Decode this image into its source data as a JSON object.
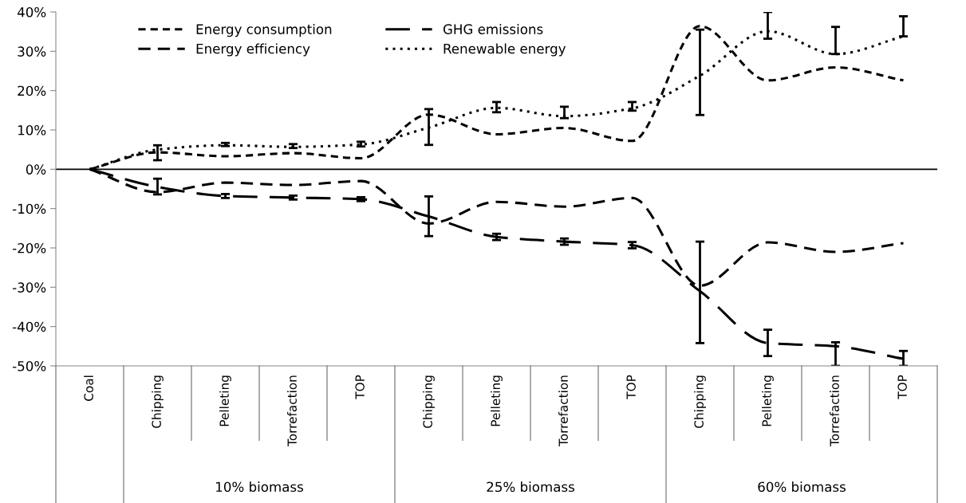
{
  "chart_data": {
    "type": "line",
    "categories": [
      "Coal",
      "Chipping",
      "Pelleting",
      "Torrefaction",
      "TOP",
      "Chipping",
      "Pelleting",
      "Torrefaction",
      "TOP",
      "Chipping",
      "Pelleting",
      "Torrefaction",
      "TOP"
    ],
    "series": [
      {
        "name": "Energy consumption",
        "color": "#000000",
        "line_style": "dashed",
        "values": [
          0,
          4.3,
          3.3,
          4.1,
          2.8,
          13.9,
          8.9,
          10.5,
          7.2,
          36.4,
          22.6,
          25.9,
          22.6
        ]
      },
      {
        "name": "Energy efficiency",
        "color": "#000000",
        "line_style": "dashed",
        "values": [
          0,
          -5.8,
          -3.4,
          -4.0,
          -3.0,
          -13.8,
          -8.3,
          -9.5,
          -7.3,
          -29.6,
          -18.6,
          -21,
          -18.8
        ]
      },
      {
        "name": "GHG emissions",
        "color": "#000000",
        "line_style": "dashed",
        "values": [
          0,
          -4.5,
          -6.8,
          -7.2,
          -7.6,
          -12,
          -17.2,
          -18.4,
          -19.3,
          -31,
          -44.2,
          -45,
          -48.2
        ],
        "errors": [
          null,
          [
            -6.4,
            -2.4
          ],
          [
            -7.3,
            -6.3
          ],
          [
            -7.7,
            -6.7
          ],
          [
            -8.1,
            -7.1
          ],
          [
            -17,
            -6.9
          ],
          [
            -18,
            -16.4
          ],
          [
            -19.2,
            -17.6
          ],
          [
            -20.1,
            -18.5
          ],
          [
            -44.2,
            -18.4
          ],
          [
            -47.5,
            -40.8
          ],
          [
            -50,
            -44
          ],
          [
            -50,
            -46.2
          ]
        ]
      },
      {
        "name": "Renewable energy",
        "color": "#000000",
        "line_style": "dotted",
        "values": [
          0,
          5.0,
          6.1,
          5.7,
          6.3,
          10.6,
          15.6,
          13.5,
          15.5,
          23.8,
          35.1,
          29.3,
          33.8
        ],
        "errors": [
          null,
          [
            2.3,
            6.1
          ],
          [
            5.9,
            6.7
          ],
          [
            5.4,
            6.4
          ],
          [
            5.8,
            7.0
          ],
          [
            6.2,
            15.3
          ],
          [
            14.5,
            17.1
          ],
          [
            13.0,
            15.9
          ],
          [
            14.9,
            17.1
          ],
          [
            13.8,
            35.5
          ],
          [
            33.2,
            40
          ],
          [
            29.3,
            36.2
          ],
          [
            33.8,
            38.9
          ]
        ]
      }
    ],
    "ylim": [
      -50,
      40
    ],
    "yticks": [
      {
        "value": -50,
        "label": "-50%"
      },
      {
        "value": -40,
        "label": "-40%"
      },
      {
        "value": -30,
        "label": "-30%"
      },
      {
        "value": -20,
        "label": "-20%"
      },
      {
        "value": -10,
        "label": "-10%"
      },
      {
        "value": 0,
        "label": "0%"
      },
      {
        "value": 10,
        "label": "10%"
      },
      {
        "value": 20,
        "label": "20%"
      },
      {
        "value": 30,
        "label": "30%"
      },
      {
        "value": 40,
        "label": "40%"
      }
    ],
    "ref_lines": [
      {
        "axis": "y",
        "value": 0,
        "color": "#000000"
      }
    ],
    "annotations": [
      "10% biomass",
      "25% biomass",
      "60% biomass"
    ],
    "grid": false,
    "legend": "top left",
    "marker": "none"
  }
}
